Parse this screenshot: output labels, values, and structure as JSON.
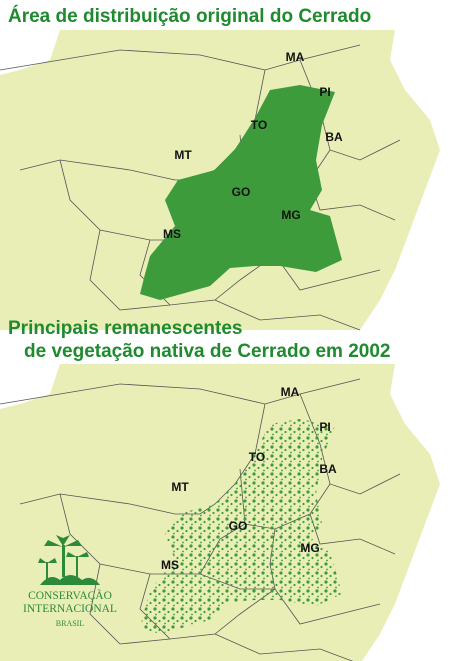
{
  "maps": [
    {
      "title": [
        "Área de distribuição original do Cerrado"
      ],
      "labels": [
        "MA",
        "PI",
        "TO",
        "BA",
        "MT",
        "GO",
        "MG",
        "MS"
      ]
    },
    {
      "title": [
        "Principais remanescentes",
        "de vegetação nativa de Cerrado em 2002"
      ],
      "labels": [
        "MA",
        "PI",
        "TO",
        "BA",
        "MT",
        "GO",
        "MG",
        "MS"
      ]
    }
  ],
  "logo": {
    "lines": [
      "CONSERVAÇÃO",
      "INTERNACIONAL",
      "BRASIL"
    ]
  }
}
